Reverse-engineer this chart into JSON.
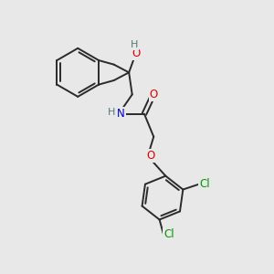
{
  "background_color": "#e8e8e8",
  "bond_color": "#2a2a2a",
  "bond_width": 1.4,
  "atom_colors": {
    "O": "#dd0000",
    "N": "#0000cc",
    "Cl": "#009900",
    "H_label": "#557777",
    "C": "#2a2a2a"
  },
  "font_size_atom": 8.5,
  "figsize": [
    3.0,
    3.0
  ],
  "dpi": 100
}
